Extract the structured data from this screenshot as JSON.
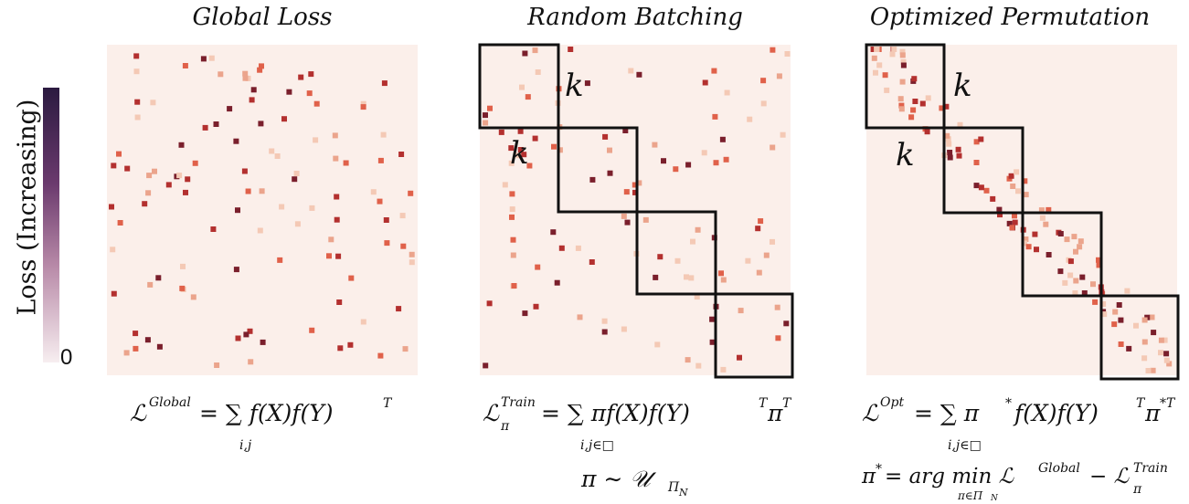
{
  "panels": [
    {
      "title": "Global Loss",
      "formula": "ℒ^{Global} = Σ f(X)f(Y)^T",
      "formula_main": "ℒ",
      "formula_sup": "Global",
      "formula_rest": "= ∑ f(X)f(Y)",
      "formula_T": "T",
      "formula_sub": "i,j"
    },
    {
      "title": "Random Batching",
      "formula_main": "ℒ",
      "formula_sup": "Train",
      "formula_subscript": "π",
      "formula_rest": "= ∑ πf(X)f(Y)",
      "formula_T": "T",
      "formula_tail": "π",
      "formula_T2": "T",
      "formula_sub": "i,j∈□",
      "formula2": "π ∼ 𝒰",
      "formula2_sub": "Π",
      "formula2_subsub": "N",
      "k_labels": [
        "k",
        "k"
      ]
    },
    {
      "title": "Optimized Permutation",
      "formula_main": "ℒ",
      "formula_sup": "Opt",
      "formula_rest": "= ∑ π",
      "formula_star": "*",
      "formula_mid": "f(X)f(Y)",
      "formula_T": "T",
      "formula_tail": "π",
      "formula_T2": "*T",
      "formula_sub": "i,j∈□",
      "formula2_a": "π",
      "formula2_star": "*",
      "formula2_b": "= arg min ℒ",
      "formula2_sup1": "Global",
      "formula2_c": "− ℒ",
      "formula2_sup2": "Train",
      "formula2_subpi": "π",
      "formula2_undermin": "π∈Π",
      "formula2_undermin_n": "N",
      "k_labels": [
        "k",
        "k"
      ]
    }
  ],
  "colorbar": {
    "label": "Loss (Increasing)",
    "zero": "0"
  },
  "colors": {
    "background": "#fbefea",
    "light": "#f4c9b5",
    "mid": "#e0614a",
    "dark": "#b3302f",
    "darkest": "#7a1f2c",
    "boxes": "#111111"
  }
}
